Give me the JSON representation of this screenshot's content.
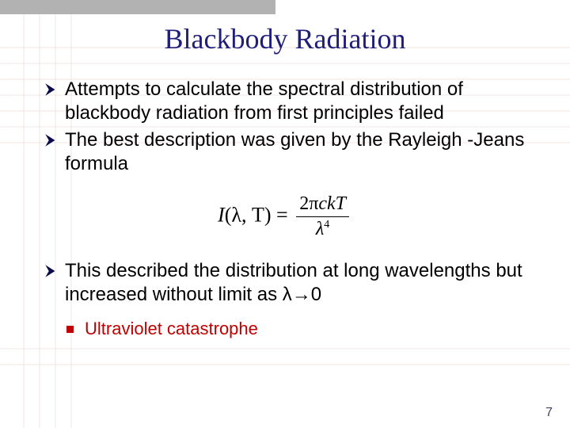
{
  "grid": {
    "hlines_y": [
      60,
      80,
      100,
      120,
      140,
      160,
      180,
      440,
      460
    ],
    "vlines_x": [
      30,
      50,
      70,
      90
    ],
    "color": "#f0e6e0"
  },
  "topbar_color": "#b2b2b2",
  "title": "Blackbody Radiation",
  "title_color": "#1f1f7a",
  "bullets": [
    "Attempts to calculate the spectral distribution of blackbody radiation from first principles failed",
    "The best description was given by the Rayleigh -Jeans formula"
  ],
  "formula": {
    "lhs_func": "I",
    "lhs_args": "(λ, T)",
    "numer_prefix": "2π",
    "numer_vars": "ckT",
    "denom_var": "λ",
    "denom_exp": "4"
  },
  "bullets2": [
    "This described the distribution at long wavelengths but increased without limit as λ→0"
  ],
  "sub_bullet": "Ultraviolet catastrophe",
  "sub_bullet_color": "#c00000",
  "sq_marker_color": "#c00000",
  "arrow_color": "#0a0a4a",
  "page_number": "7"
}
